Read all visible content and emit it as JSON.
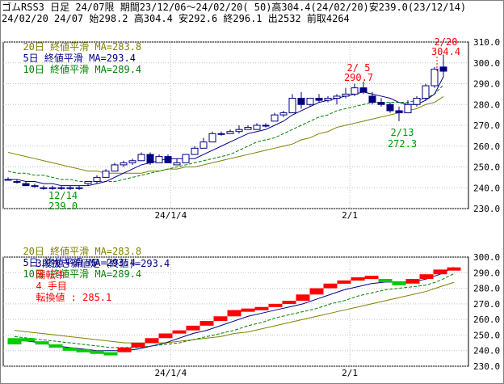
{
  "header": {
    "line1": "ゴムRSS3 日足 24/07限 期間23/12/06～24/02/20( 50)高304.4(24/02/20)安239.0(23/12/14)",
    "line2": "24/02/20 24/07 始298.2 高304.4 安292.6 終296.1 出2532 前取4264"
  },
  "upper_legend": {
    "ma20": "20日 終値平滑 MA=283.8",
    "ma5": "5日 終値平滑 MA=293.4",
    "ma10": "10日 終値平滑 MA=289.4"
  },
  "lower_legend": {
    "ma20": "20日 終値平滑 MA=283.8",
    "ma5": "5日 終値平滑 MA=293.4",
    "ma10": "10日 終値平滑 MA=289.4",
    "line2_a": "3段抜き新値足（終値)=293.4",
    "line2_b": "陽転中",
    "line2_c": "4 手目",
    "line2_d": "転換値 : 285.1"
  },
  "colors": {
    "ma20": "#808000",
    "ma5": "#000080",
    "ma10": "#008000",
    "up_candle": "#ffffff",
    "down_candle": "#000080",
    "red": "#ff0000",
    "green": "#00cc00",
    "annot_red": "#ff0000",
    "annot_green": "#009900"
  },
  "chart_data": [
    {
      "type": "candlestick",
      "ylim": [
        230,
        310
      ],
      "yticks": [
        "310.0",
        "300.0",
        "290.0",
        "280.0",
        "270.0",
        "260.0",
        "250.0",
        "240.0",
        "230.0"
      ],
      "xtick_labels": [
        "24/1/4",
        "2/1"
      ],
      "annotations": [
        {
          "text": "12/14",
          "color": "green"
        },
        {
          "text": "239.0",
          "color": "green"
        },
        {
          "text": "2/ 5",
          "color": "red"
        },
        {
          "text": "290.7",
          "color": "red"
        },
        {
          "text": "2/13",
          "color": "green"
        },
        {
          "text": "272.3",
          "color": "green"
        },
        {
          "text": "2/20",
          "color": "red"
        },
        {
          "text": "304.4",
          "color": "red"
        }
      ],
      "candles": [
        [
          244,
          245,
          244,
          244
        ],
        [
          243,
          244,
          242,
          243
        ],
        [
          242,
          243,
          241,
          241
        ],
        [
          241,
          242,
          240,
          241
        ],
        [
          240,
          241,
          239,
          240
        ],
        [
          240,
          241,
          239,
          240
        ],
        [
          240,
          241,
          239,
          240
        ],
        [
          240,
          241,
          239,
          240
        ],
        [
          240,
          241,
          239,
          240
        ],
        [
          242,
          243,
          241,
          243
        ],
        [
          243,
          246,
          242,
          245
        ],
        [
          245,
          249,
          245,
          248
        ],
        [
          248,
          252,
          248,
          251
        ],
        [
          251,
          253,
          250,
          252
        ],
        [
          252,
          254,
          251,
          253
        ],
        [
          253,
          257,
          253,
          256
        ],
        [
          256,
          257,
          251,
          252
        ],
        [
          252,
          256,
          252,
          255
        ],
        [
          255,
          256,
          252,
          252
        ],
        [
          251,
          254,
          251,
          252
        ],
        [
          252,
          256,
          252,
          256
        ],
        [
          256,
          260,
          256,
          259
        ],
        [
          259,
          264,
          259,
          262
        ],
        [
          262,
          267,
          262,
          266
        ],
        [
          266,
          267,
          265,
          266
        ],
        [
          266,
          268,
          266,
          267
        ],
        [
          267,
          270,
          266,
          268
        ],
        [
          268,
          270,
          268,
          269
        ],
        [
          268,
          271,
          268,
          270
        ],
        [
          270,
          271,
          269,
          270
        ],
        [
          272,
          276,
          272,
          275
        ],
        [
          275,
          277,
          274,
          276
        ],
        [
          276,
          285,
          276,
          283
        ],
        [
          283,
          286,
          278,
          280
        ],
        [
          280,
          283,
          279,
          283
        ],
        [
          283,
          285,
          281,
          282
        ],
        [
          282,
          284,
          281,
          283
        ],
        [
          283,
          285,
          280,
          284
        ],
        [
          284,
          288,
          283,
          285
        ],
        [
          285,
          290,
          284,
          288
        ],
        [
          288,
          291,
          285,
          286
        ],
        [
          284,
          286,
          280,
          281
        ],
        [
          281,
          283,
          279,
          280
        ],
        [
          280,
          281,
          276,
          277
        ],
        [
          277,
          279,
          272,
          276
        ],
        [
          276,
          282,
          276,
          280
        ],
        [
          280,
          284,
          279,
          283
        ],
        [
          283,
          290,
          282,
          289
        ],
        [
          289,
          298,
          288,
          297
        ],
        [
          298,
          304,
          293,
          296
        ]
      ],
      "ma5": [
        244,
        244,
        243,
        243,
        242,
        242,
        241,
        241,
        241,
        241,
        242,
        243,
        245,
        247,
        249,
        251,
        252,
        253,
        254,
        254,
        254,
        254,
        256,
        258,
        260,
        262,
        264,
        266,
        267,
        268,
        270,
        272,
        275,
        277,
        279,
        281,
        282,
        283,
        284,
        285,
        286,
        285,
        284,
        283,
        281,
        280,
        280,
        282,
        285,
        293.4
      ],
      "ma10": [
        248,
        247,
        247,
        246,
        246,
        245,
        244,
        244,
        243,
        243,
        243,
        243,
        243,
        244,
        245,
        246,
        247,
        248,
        249,
        250,
        251,
        252,
        253,
        254,
        255,
        256,
        258,
        260,
        262,
        263,
        264,
        266,
        268,
        270,
        272,
        274,
        275,
        277,
        278,
        279,
        280,
        281,
        281,
        281,
        281,
        281,
        282,
        283,
        285,
        289.4
      ],
      "ma20": [
        257,
        256,
        255,
        254,
        253,
        252,
        251,
        250,
        249,
        248,
        248,
        247,
        247,
        247,
        247,
        247,
        248,
        248,
        249,
        249,
        250,
        250,
        251,
        252,
        253,
        254,
        255,
        256,
        257,
        258,
        259,
        260,
        261,
        263,
        264,
        266,
        267,
        269,
        270,
        271,
        272,
        273,
        274,
        275,
        276,
        277,
        278,
        280,
        281,
        283.8
      ]
    },
    {
      "type": "new_price_bars",
      "ylim": [
        230,
        300
      ],
      "yticks": [
        "300.0",
        "290.0",
        "280.0",
        "270.0",
        "260.0",
        "250.0",
        "240.0",
        "230.0"
      ],
      "xtick_labels": [
        "24/1/4",
        "2/1"
      ],
      "bars": [
        {
          "o": 244,
          "c": 248,
          "dir": "down"
        },
        {
          "o": 248,
          "c": 246,
          "dir": "down"
        },
        {
          "o": 246,
          "c": 244,
          "dir": "down"
        },
        {
          "o": 244,
          "c": 242,
          "dir": "down"
        },
        {
          "o": 242,
          "c": 241,
          "dir": "down"
        },
        {
          "o": 241,
          "c": 240,
          "dir": "down"
        },
        {
          "o": 240,
          "c": 239,
          "dir": "down"
        },
        {
          "o": 239,
          "c": 238.5,
          "dir": "down"
        },
        {
          "o": 239,
          "c": 242,
          "dir": "up"
        },
        {
          "o": 242,
          "c": 245,
          "dir": "up"
        },
        {
          "o": 245,
          "c": 248,
          "dir": "up"
        },
        {
          "o": 248,
          "c": 251,
          "dir": "up"
        },
        {
          "o": 251,
          "c": 253,
          "dir": "up"
        },
        {
          "o": 253,
          "c": 256,
          "dir": "up"
        },
        {
          "o": 256,
          "c": 259,
          "dir": "up"
        },
        {
          "o": 259,
          "c": 262,
          "dir": "up"
        },
        {
          "o": 262,
          "c": 266,
          "dir": "up"
        },
        {
          "o": 266,
          "c": 267,
          "dir": "up"
        },
        {
          "o": 267,
          "c": 268,
          "dir": "up"
        },
        {
          "o": 268,
          "c": 270,
          "dir": "up"
        },
        {
          "o": 270,
          "c": 272,
          "dir": "up"
        },
        {
          "o": 272,
          "c": 276,
          "dir": "up"
        },
        {
          "o": 276,
          "c": 280,
          "dir": "up"
        },
        {
          "o": 280,
          "c": 283,
          "dir": "up"
        },
        {
          "o": 283,
          "c": 285,
          "dir": "up"
        },
        {
          "o": 285,
          "c": 287,
          "dir": "up"
        },
        {
          "o": 287,
          "c": 288,
          "dir": "up"
        },
        {
          "o": 286,
          "c": 284,
          "dir": "down"
        },
        {
          "o": 284,
          "c": 283,
          "dir": "down"
        },
        {
          "o": 283,
          "c": 286,
          "dir": "up"
        },
        {
          "o": 286,
          "c": 289,
          "dir": "up"
        },
        {
          "o": 289,
          "c": 292,
          "dir": "up"
        },
        {
          "o": 292,
          "c": 293.4,
          "dir": "up"
        }
      ],
      "ma5": [
        247,
        246,
        245,
        243,
        242,
        241,
        240,
        240,
        240,
        241,
        243,
        245,
        248,
        251,
        253,
        256,
        259,
        262,
        264,
        266,
        268,
        270,
        273,
        276,
        279,
        281,
        283,
        284,
        284,
        284,
        286,
        289,
        293.4
      ],
      "ma10": [
        249,
        248,
        247,
        246,
        245,
        244,
        243,
        242,
        242,
        242,
        243,
        244,
        245,
        247,
        249,
        251,
        253,
        256,
        258,
        261,
        263,
        265,
        267,
        270,
        272,
        275,
        277,
        279,
        280,
        281,
        282,
        285,
        289.4
      ],
      "ma20": [
        253,
        252,
        251,
        250,
        249,
        248,
        247,
        246,
        245,
        245,
        245,
        245,
        246,
        247,
        248,
        249,
        251,
        252,
        254,
        256,
        258,
        260,
        262,
        264,
        266,
        268,
        270,
        272,
        274,
        276,
        278,
        281,
        283.8
      ]
    }
  ]
}
